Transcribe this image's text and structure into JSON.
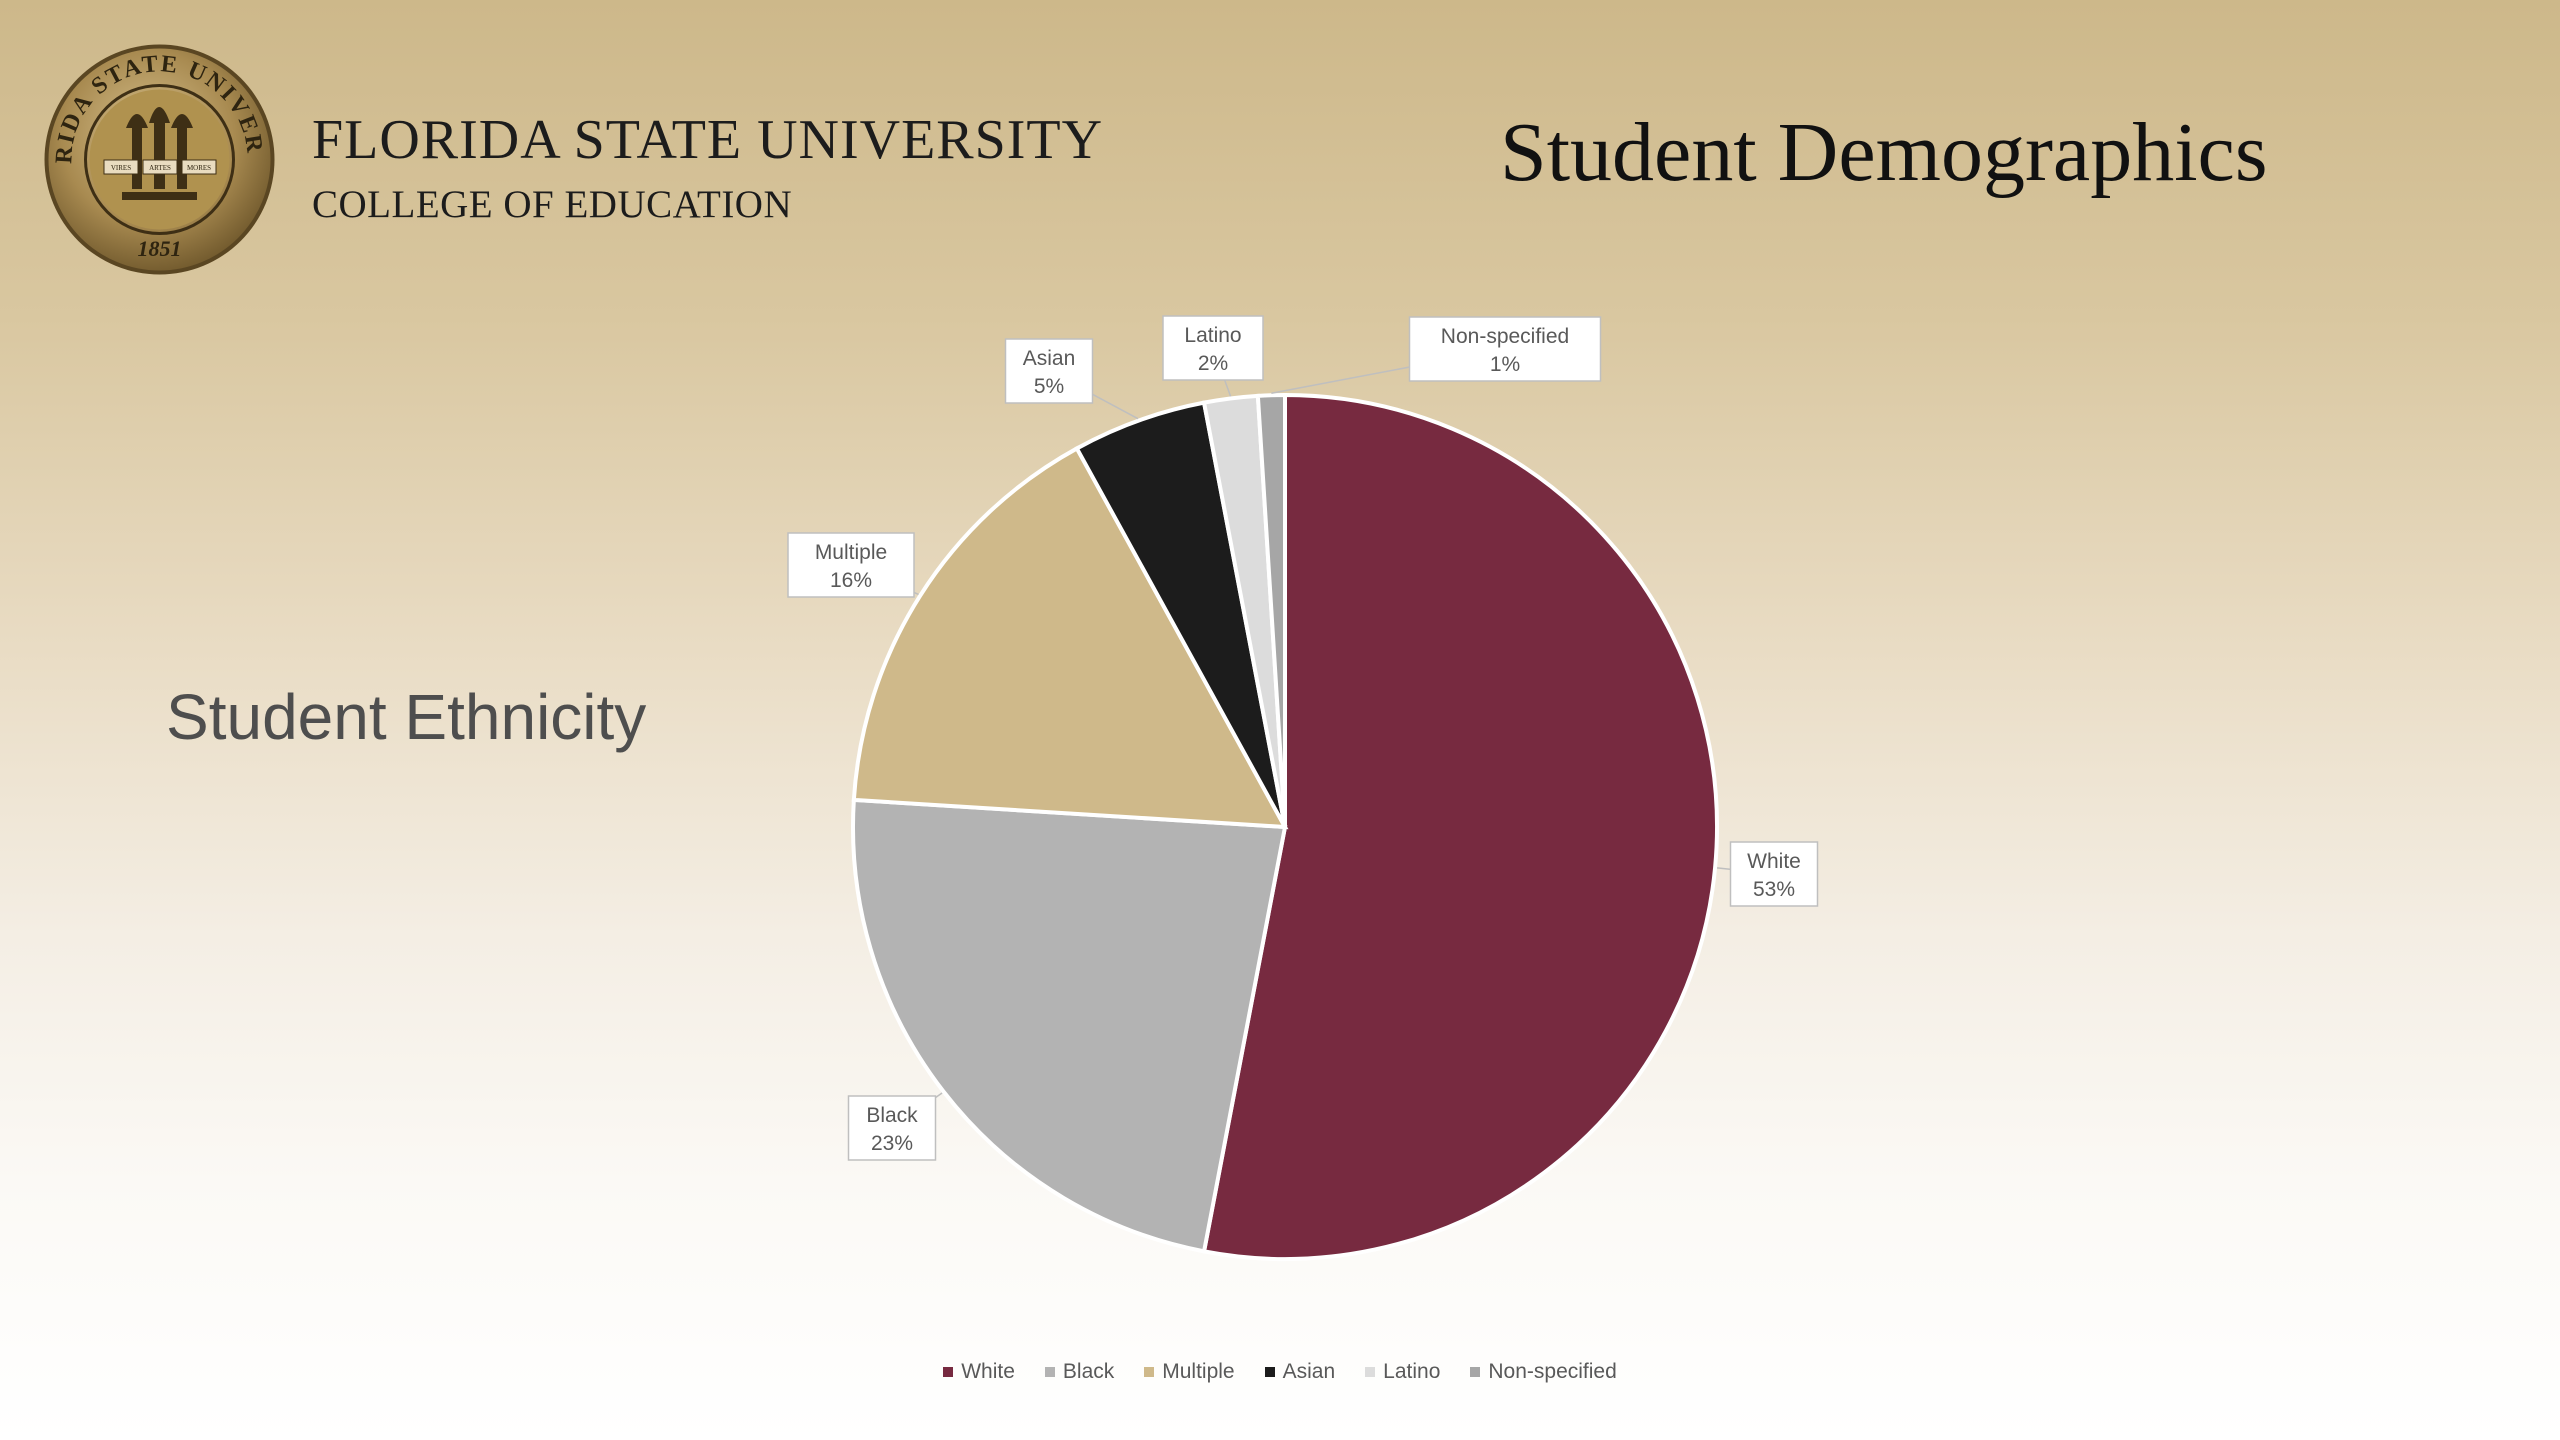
{
  "header": {
    "university": "FLORIDA STATE UNIVERSITY",
    "college": "COLLEGE OF EDUCATION",
    "seal_text": "FLORIDA STATE UNIVERSITY",
    "seal_year": "1851",
    "seal_banners": [
      "VIRES",
      "ARTES",
      "MORES"
    ]
  },
  "slide": {
    "title": "Student Demographics",
    "section_title": "Student Ethnicity"
  },
  "chart_data": {
    "type": "pie",
    "title": "",
    "slices": [
      {
        "name": "White",
        "value": 53,
        "label": "53%",
        "color": "#772a40"
      },
      {
        "name": "Black",
        "value": 23,
        "label": "23%",
        "color": "#b3b3b3"
      },
      {
        "name": "Multiple",
        "value": 16,
        "label": "16%",
        "color": "#cfb98a"
      },
      {
        "name": "Asian",
        "value": 5,
        "label": "5%",
        "color": "#1c1c1c"
      },
      {
        "name": "Latino",
        "value": 2,
        "label": "2%",
        "color": "#dcdcdc"
      },
      {
        "name": "Non-specified",
        "value": 1,
        "label": "1%",
        "color": "#a6a6a6"
      }
    ],
    "legend_position": "bottom"
  },
  "colors": {
    "garnet": "#772a40",
    "gold": "#cfb98a"
  }
}
